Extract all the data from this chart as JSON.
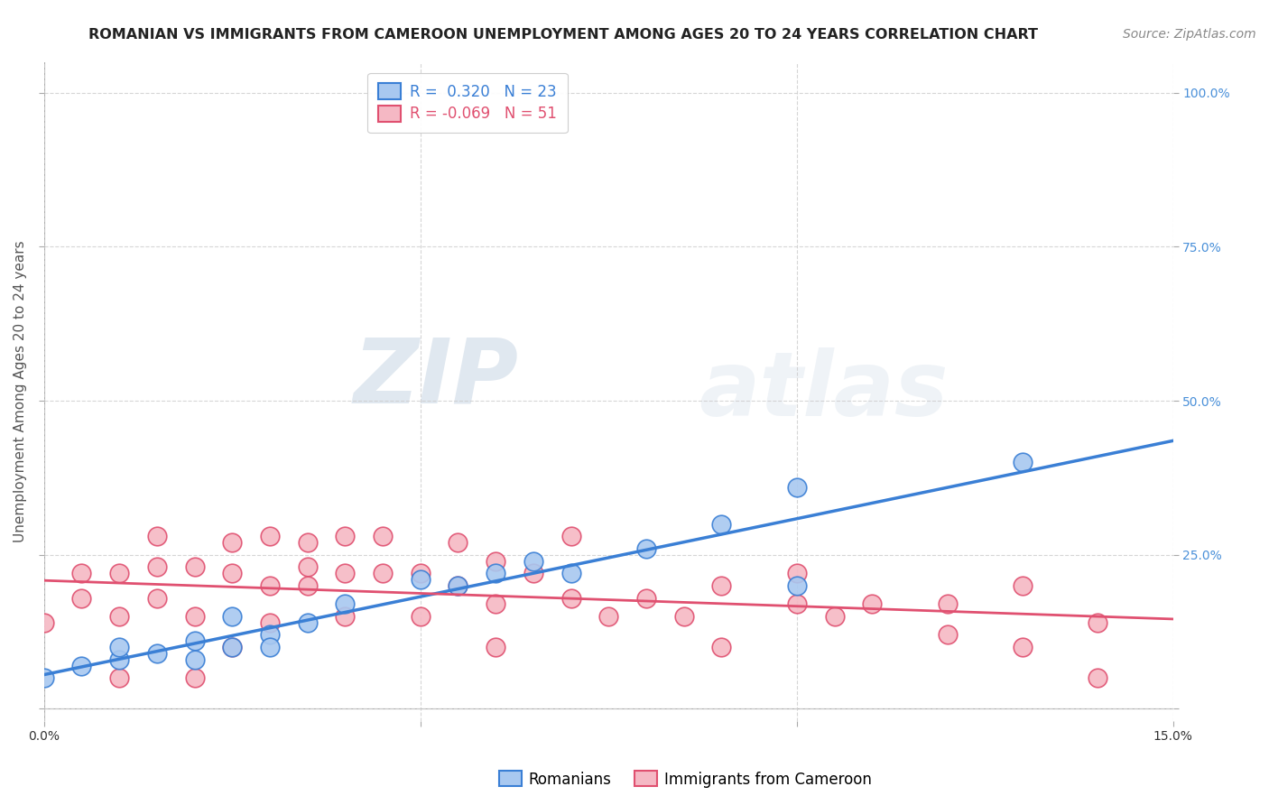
{
  "title": "ROMANIAN VS IMMIGRANTS FROM CAMEROON UNEMPLOYMENT AMONG AGES 20 TO 24 YEARS CORRELATION CHART",
  "source": "Source: ZipAtlas.com",
  "ylabel": "Unemployment Among Ages 20 to 24 years",
  "xlim": [
    0.0,
    0.15
  ],
  "ylim": [
    -0.02,
    1.05
  ],
  "xticks": [
    0.0,
    0.05,
    0.1,
    0.15
  ],
  "xticklabels": [
    "0.0%",
    "",
    "",
    "15.0%"
  ],
  "yticks": [
    0.0,
    0.25,
    0.5,
    0.75,
    1.0
  ],
  "yticklabels_right": [
    "",
    "25.0%",
    "50.0%",
    "75.0%",
    "100.0%"
  ],
  "romanian_color": "#a8c8f0",
  "cameroon_color": "#f5b8c4",
  "romanian_line_color": "#3a7fd5",
  "cameroon_line_color": "#e05070",
  "r_romanian": 0.32,
  "n_romanian": 23,
  "r_cameroon": -0.069,
  "n_cameroon": 51,
  "watermark_zip": "ZIP",
  "watermark_atlas": "atlas",
  "legend_label_romanian": "Romanians",
  "legend_label_cameroon": "Immigrants from Cameroon",
  "romanian_x": [
    0.0,
    0.005,
    0.01,
    0.01,
    0.015,
    0.02,
    0.02,
    0.025,
    0.025,
    0.03,
    0.03,
    0.035,
    0.04,
    0.05,
    0.055,
    0.06,
    0.065,
    0.07,
    0.08,
    0.09,
    0.1,
    0.1,
    0.13
  ],
  "romanian_y": [
    0.05,
    0.07,
    0.08,
    0.1,
    0.09,
    0.11,
    0.08,
    0.1,
    0.15,
    0.12,
    0.1,
    0.14,
    0.17,
    0.21,
    0.2,
    0.22,
    0.24,
    0.22,
    0.26,
    0.3,
    0.36,
    0.2,
    0.4
  ],
  "cameroon_x": [
    0.0,
    0.005,
    0.005,
    0.01,
    0.01,
    0.01,
    0.015,
    0.015,
    0.015,
    0.02,
    0.02,
    0.02,
    0.025,
    0.025,
    0.025,
    0.03,
    0.03,
    0.03,
    0.035,
    0.035,
    0.035,
    0.04,
    0.04,
    0.04,
    0.045,
    0.045,
    0.05,
    0.05,
    0.055,
    0.055,
    0.06,
    0.06,
    0.06,
    0.065,
    0.07,
    0.07,
    0.075,
    0.08,
    0.085,
    0.09,
    0.09,
    0.1,
    0.1,
    0.105,
    0.11,
    0.12,
    0.12,
    0.13,
    0.13,
    0.14,
    0.14
  ],
  "cameroon_y": [
    0.14,
    0.18,
    0.22,
    0.15,
    0.22,
    0.05,
    0.18,
    0.23,
    0.28,
    0.15,
    0.23,
    0.05,
    0.22,
    0.27,
    0.1,
    0.2,
    0.28,
    0.14,
    0.23,
    0.2,
    0.27,
    0.22,
    0.28,
    0.15,
    0.22,
    0.28,
    0.15,
    0.22,
    0.2,
    0.27,
    0.17,
    0.24,
    0.1,
    0.22,
    0.18,
    0.28,
    0.15,
    0.18,
    0.15,
    0.2,
    0.1,
    0.17,
    0.22,
    0.15,
    0.17,
    0.17,
    0.12,
    0.2,
    0.1,
    0.05,
    0.14
  ],
  "title_fontsize": 11.5,
  "axis_label_fontsize": 11,
  "tick_fontsize": 10,
  "legend_fontsize": 12,
  "source_fontsize": 10
}
